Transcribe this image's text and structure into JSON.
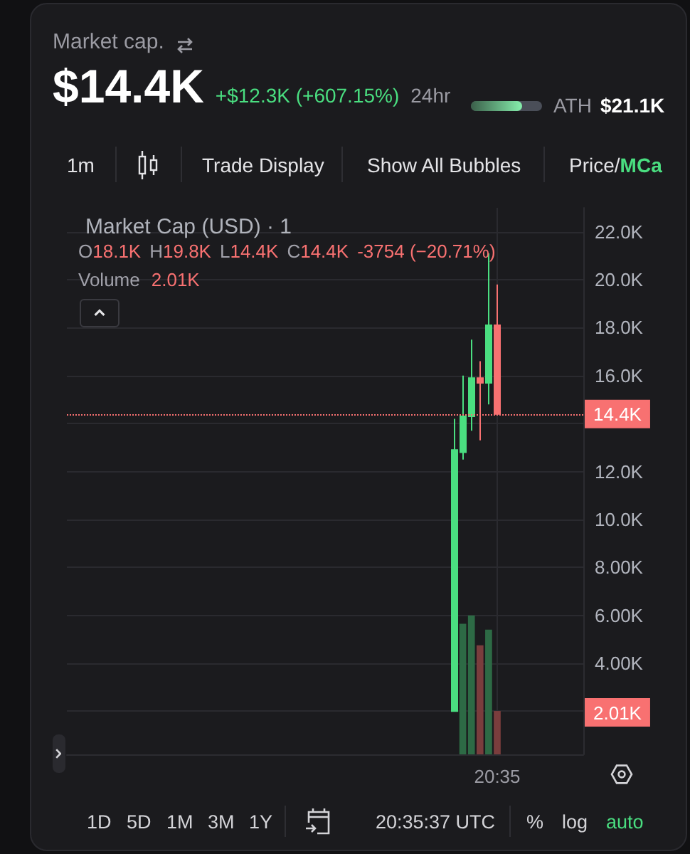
{
  "chart_data": {
    "type": "candlestick",
    "title": "Market Cap (USD) · 1",
    "categories": [
      null,
      null,
      null,
      null,
      null,
      null,
      null,
      null,
      null,
      null,
      null,
      null,
      null,
      null,
      null,
      null,
      null,
      null,
      null,
      null,
      null,
      null,
      null,
      null,
      null,
      null,
      null,
      null,
      null,
      null,
      null,
      null,
      null,
      null,
      null,
      null,
      null,
      null,
      null,
      null,
      null,
      null,
      null,
      null,
      null,
      null,
      null,
      null,
      null,
      null,
      "20:35",
      null,
      null,
      null,
      null,
      null,
      null,
      null,
      null,
      null,
      null
    ],
    "series": [
      {
        "type": "bar",
        "values": [
          null,
          null,
          null,
          null,
          null,
          null,
          null,
          null,
          null,
          null,
          null,
          null,
          null,
          null,
          null,
          null,
          null,
          null,
          null,
          null,
          null,
          null,
          null,
          null,
          null,
          null,
          null,
          null,
          null,
          null,
          null,
          null,
          null,
          null,
          null,
          null,
          null,
          null,
          null,
          null,
          null,
          null,
          null,
          null,
          null,
          null,
          5650,
          6000,
          4750,
          5400,
          2010,
          null,
          null,
          null,
          null,
          null,
          null,
          null,
          null,
          null,
          null
        ],
        "colors": [
          null,
          null,
          null,
          null,
          null,
          null,
          null,
          null,
          null,
          null,
          null,
          null,
          null,
          null,
          null,
          null,
          null,
          null,
          null,
          null,
          null,
          null,
          null,
          null,
          null,
          null,
          null,
          null,
          null,
          null,
          null,
          null,
          null,
          null,
          null,
          null,
          null,
          null,
          null,
          null,
          null,
          null,
          null,
          null,
          null,
          null,
          "#2d6a45",
          "#2d6a45",
          "#7a3d3d",
          "#2d6a45",
          "#7a3d3d",
          null,
          null,
          null,
          null,
          null,
          null,
          null,
          null,
          null,
          null
        ]
      },
      {
        "ohlc": [
          null,
          null,
          null,
          null,
          null,
          null,
          null,
          null,
          null,
          null,
          null,
          null,
          null,
          null,
          null,
          null,
          null,
          null,
          null,
          null,
          null,
          null,
          null,
          null,
          null,
          null,
          null,
          null,
          null,
          null,
          null,
          null,
          null,
          null,
          null,
          null,
          null,
          null,
          null,
          null,
          null,
          null,
          null,
          null,
          null,
          [
            2000,
            14200,
            2000,
            12900
          ],
          [
            12800,
            16000,
            12500,
            14300
          ],
          [
            14300,
            17500,
            13700,
            15900
          ],
          [
            15900,
            16600,
            13300,
            15700
          ],
          [
            15700,
            21100,
            14800,
            18100
          ],
          [
            18100,
            19800,
            14400,
            14400
          ],
          null,
          null,
          null,
          null,
          null,
          null,
          null,
          null,
          null,
          null
        ],
        "colors": [
          null,
          null,
          null,
          null,
          null,
          null,
          null,
          null,
          null,
          null,
          null,
          null,
          null,
          null,
          null,
          null,
          null,
          null,
          null,
          null,
          null,
          null,
          null,
          null,
          null,
          null,
          null,
          null,
          null,
          null,
          null,
          null,
          null,
          null,
          null,
          null,
          null,
          null,
          null,
          null,
          null,
          null,
          null,
          null,
          null,
          "#4ade80",
          "#4ade80",
          "#4ade80",
          "#f87171",
          "#4ade80",
          "#f87171",
          null,
          null,
          null,
          null,
          null,
          null,
          null,
          null,
          null,
          null
        ]
      }
    ],
    "ylim": [
      200,
      23000
    ],
    "yticks": [
      {
        "value": 2000,
        "label": null
      },
      {
        "value": 4000,
        "label": "4.00K"
      },
      {
        "value": 6000,
        "label": "6.00K"
      },
      {
        "value": 8000,
        "label": "8.00K"
      },
      {
        "value": 10000,
        "label": "10.0K"
      },
      {
        "value": 12000,
        "label": "12.0K"
      },
      {
        "value": 14000,
        "label": null
      },
      {
        "value": 16000,
        "label": "16.0K"
      },
      {
        "value": 18000,
        "label": "18.0K"
      },
      {
        "value": 20000,
        "label": "20.0K"
      },
      {
        "value": 22000,
        "label": "22.0K"
      }
    ],
    "grid": true,
    "ref_lines": [
      {
        "axis": "y",
        "value": 14400,
        "label": "14.4K",
        "color": "#f87171",
        "line_style": "dotted"
      }
    ],
    "annotations": [
      "Market cap.",
      "$14.4K",
      "+$12.3K (+607.15%)",
      "24hr",
      "ATH",
      "$21.1K",
      "1m",
      "Trade Display",
      "Show All Bubbles",
      "Price/",
      "MCa",
      "O18.1K",
      "H19.8K",
      "L14.4K",
      "C14.4K",
      "-3754 (−20.71%)",
      "Volume",
      "2.01K",
      "2.01K",
      "1D",
      "5D",
      "1M",
      "3M",
      "1Y",
      "20:35:37 UTC",
      "%",
      "log",
      "auto"
    ]
  }
}
